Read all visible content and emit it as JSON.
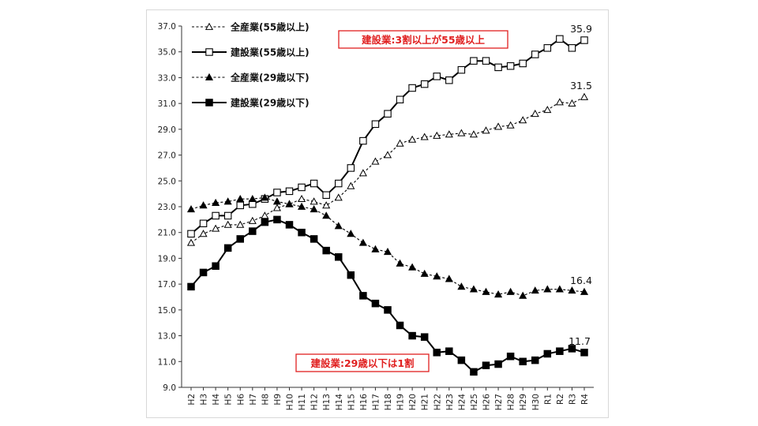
{
  "chart_data": {
    "type": "line",
    "title": "",
    "xlabel": "",
    "ylabel": "",
    "ylim": [
      9.0,
      37.0
    ],
    "yticks": [
      "9.0",
      "11.0",
      "13.0",
      "15.0",
      "17.0",
      "19.0",
      "21.0",
      "23.0",
      "25.0",
      "27.0",
      "29.0",
      "31.0",
      "33.0",
      "35.0",
      "37.0"
    ],
    "grid": false,
    "legend_position": "top-left",
    "categories": [
      "H2",
      "H3",
      "H4",
      "H5",
      "H6",
      "H7",
      "H8",
      "H9",
      "H10",
      "H11",
      "H12",
      "H13",
      "H14",
      "H15",
      "H16",
      "H17",
      "H18",
      "H19",
      "H20",
      "H21",
      "H22",
      "H23",
      "H24",
      "H25",
      "H26",
      "H27",
      "H28",
      "H29",
      "H30",
      "R1",
      "R2",
      "R3",
      "R4"
    ],
    "series": [
      {
        "name": "全産業(55歳以上)",
        "style": "dashed-open-triangle",
        "values": [
          20.2,
          20.9,
          21.3,
          21.6,
          21.6,
          21.9,
          22.3,
          22.9,
          23.2,
          23.6,
          23.4,
          23.1,
          23.7,
          24.6,
          25.6,
          26.5,
          27.0,
          27.9,
          28.2,
          28.4,
          28.5,
          28.6,
          28.7,
          28.6,
          28.9,
          29.2,
          29.3,
          29.7,
          30.2,
          30.5,
          31.1,
          31.0,
          31.5
        ],
        "end_label": "31.5"
      },
      {
        "name": "建設業(55歳以上)",
        "style": "solid-open-square",
        "values": [
          20.9,
          21.7,
          22.3,
          22.3,
          23.1,
          23.2,
          23.6,
          24.1,
          24.2,
          24.5,
          24.8,
          23.9,
          24.8,
          26.0,
          28.1,
          29.4,
          30.2,
          31.3,
          32.2,
          32.5,
          33.1,
          32.8,
          33.6,
          34.3,
          34.3,
          33.8,
          33.9,
          34.1,
          34.8,
          35.3,
          36.0,
          35.3,
          35.9
        ],
        "end_label": "35.9"
      },
      {
        "name": "全産業(29歳以下)",
        "style": "dashed-filled-triangle",
        "values": [
          22.8,
          23.1,
          23.3,
          23.4,
          23.6,
          23.6,
          23.7,
          23.4,
          23.2,
          23.0,
          22.8,
          22.3,
          21.5,
          20.9,
          20.2,
          19.7,
          19.5,
          18.6,
          18.3,
          17.8,
          17.6,
          17.4,
          16.8,
          16.6,
          16.4,
          16.2,
          16.4,
          16.1,
          16.5,
          16.6,
          16.6,
          16.5,
          16.4
        ],
        "end_label": "16.4"
      },
      {
        "name": "建設業(29歳以下)",
        "style": "solid-filled-square",
        "values": [
          16.8,
          17.9,
          18.4,
          19.8,
          20.5,
          21.1,
          21.8,
          22.0,
          21.6,
          21.0,
          20.5,
          19.6,
          19.1,
          17.7,
          16.1,
          15.5,
          15.0,
          13.8,
          13.0,
          12.9,
          11.7,
          11.8,
          11.1,
          10.2,
          10.7,
          10.8,
          11.4,
          11.0,
          11.1,
          11.6,
          11.8,
          12.0,
          11.7
        ],
        "end_label": "11.7"
      }
    ],
    "annotations": [
      {
        "text": "建設業:3割以上が55歳以上",
        "color": "#e02020"
      },
      {
        "text": "建設業:29歳以下は1割",
        "color": "#e02020"
      }
    ]
  }
}
